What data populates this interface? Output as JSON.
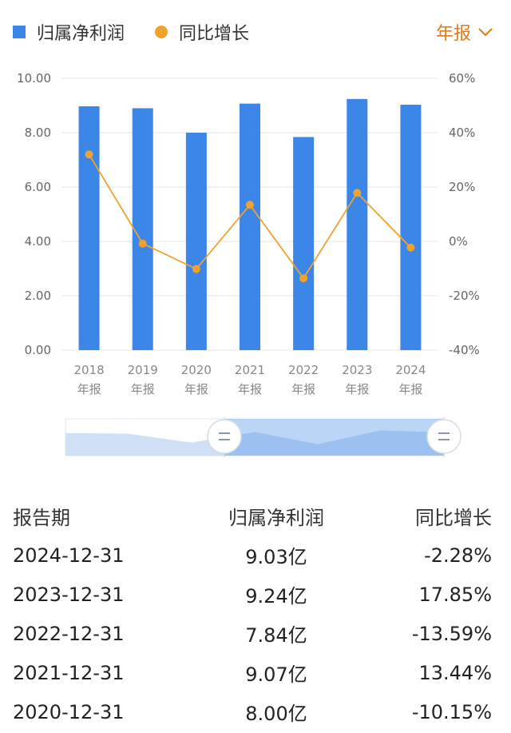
{
  "legend": {
    "bar_label": "归属净利润",
    "line_label": "同比增长",
    "period_label": "年报"
  },
  "colors": {
    "bar": "#3b86e6",
    "line": "#f0a22e",
    "accent": "#e07a1e",
    "up": "#e03b3b",
    "down": "#1e9b3a"
  },
  "chart_data": {
    "type": "bar",
    "categories": [
      "2018",
      "2019",
      "2020",
      "2021",
      "2022",
      "2023",
      "2024"
    ],
    "category_suffix": "年报",
    "series": [
      {
        "type": "bar",
        "name": "归属净利润",
        "axis": "left",
        "values": [
          8.97,
          8.9,
          8.0,
          9.07,
          7.84,
          9.24,
          9.03
        ]
      },
      {
        "type": "line",
        "name": "同比增长",
        "axis": "right",
        "values": [
          32.0,
          -0.8,
          -10.15,
          13.44,
          -13.59,
          17.85,
          -2.28
        ]
      }
    ],
    "y_left": {
      "min": 0,
      "max": 10,
      "ticks": [
        "0.00",
        "2.00",
        "4.00",
        "6.00",
        "8.00",
        "10.00"
      ]
    },
    "y_right": {
      "min": -40,
      "max": 60,
      "ticks": [
        "-40%",
        "-20%",
        "0%",
        "20%",
        "40%",
        "60%"
      ]
    },
    "grid": true,
    "slider_window": [
      0.42,
      1.0
    ]
  },
  "table": {
    "headers": [
      "报告期",
      "归属净利润",
      "同比增长"
    ],
    "rows": [
      {
        "date": "2024-12-31",
        "profit": "9.03亿",
        "growth": "-2.28%",
        "dir": "down"
      },
      {
        "date": "2023-12-31",
        "profit": "9.24亿",
        "growth": "17.85%",
        "dir": "up"
      },
      {
        "date": "2022-12-31",
        "profit": "7.84亿",
        "growth": "-13.59%",
        "dir": "down"
      },
      {
        "date": "2021-12-31",
        "profit": "9.07亿",
        "growth": "13.44%",
        "dir": "up"
      },
      {
        "date": "2020-12-31",
        "profit": "8.00亿",
        "growth": "-10.15%",
        "dir": "down"
      }
    ]
  }
}
